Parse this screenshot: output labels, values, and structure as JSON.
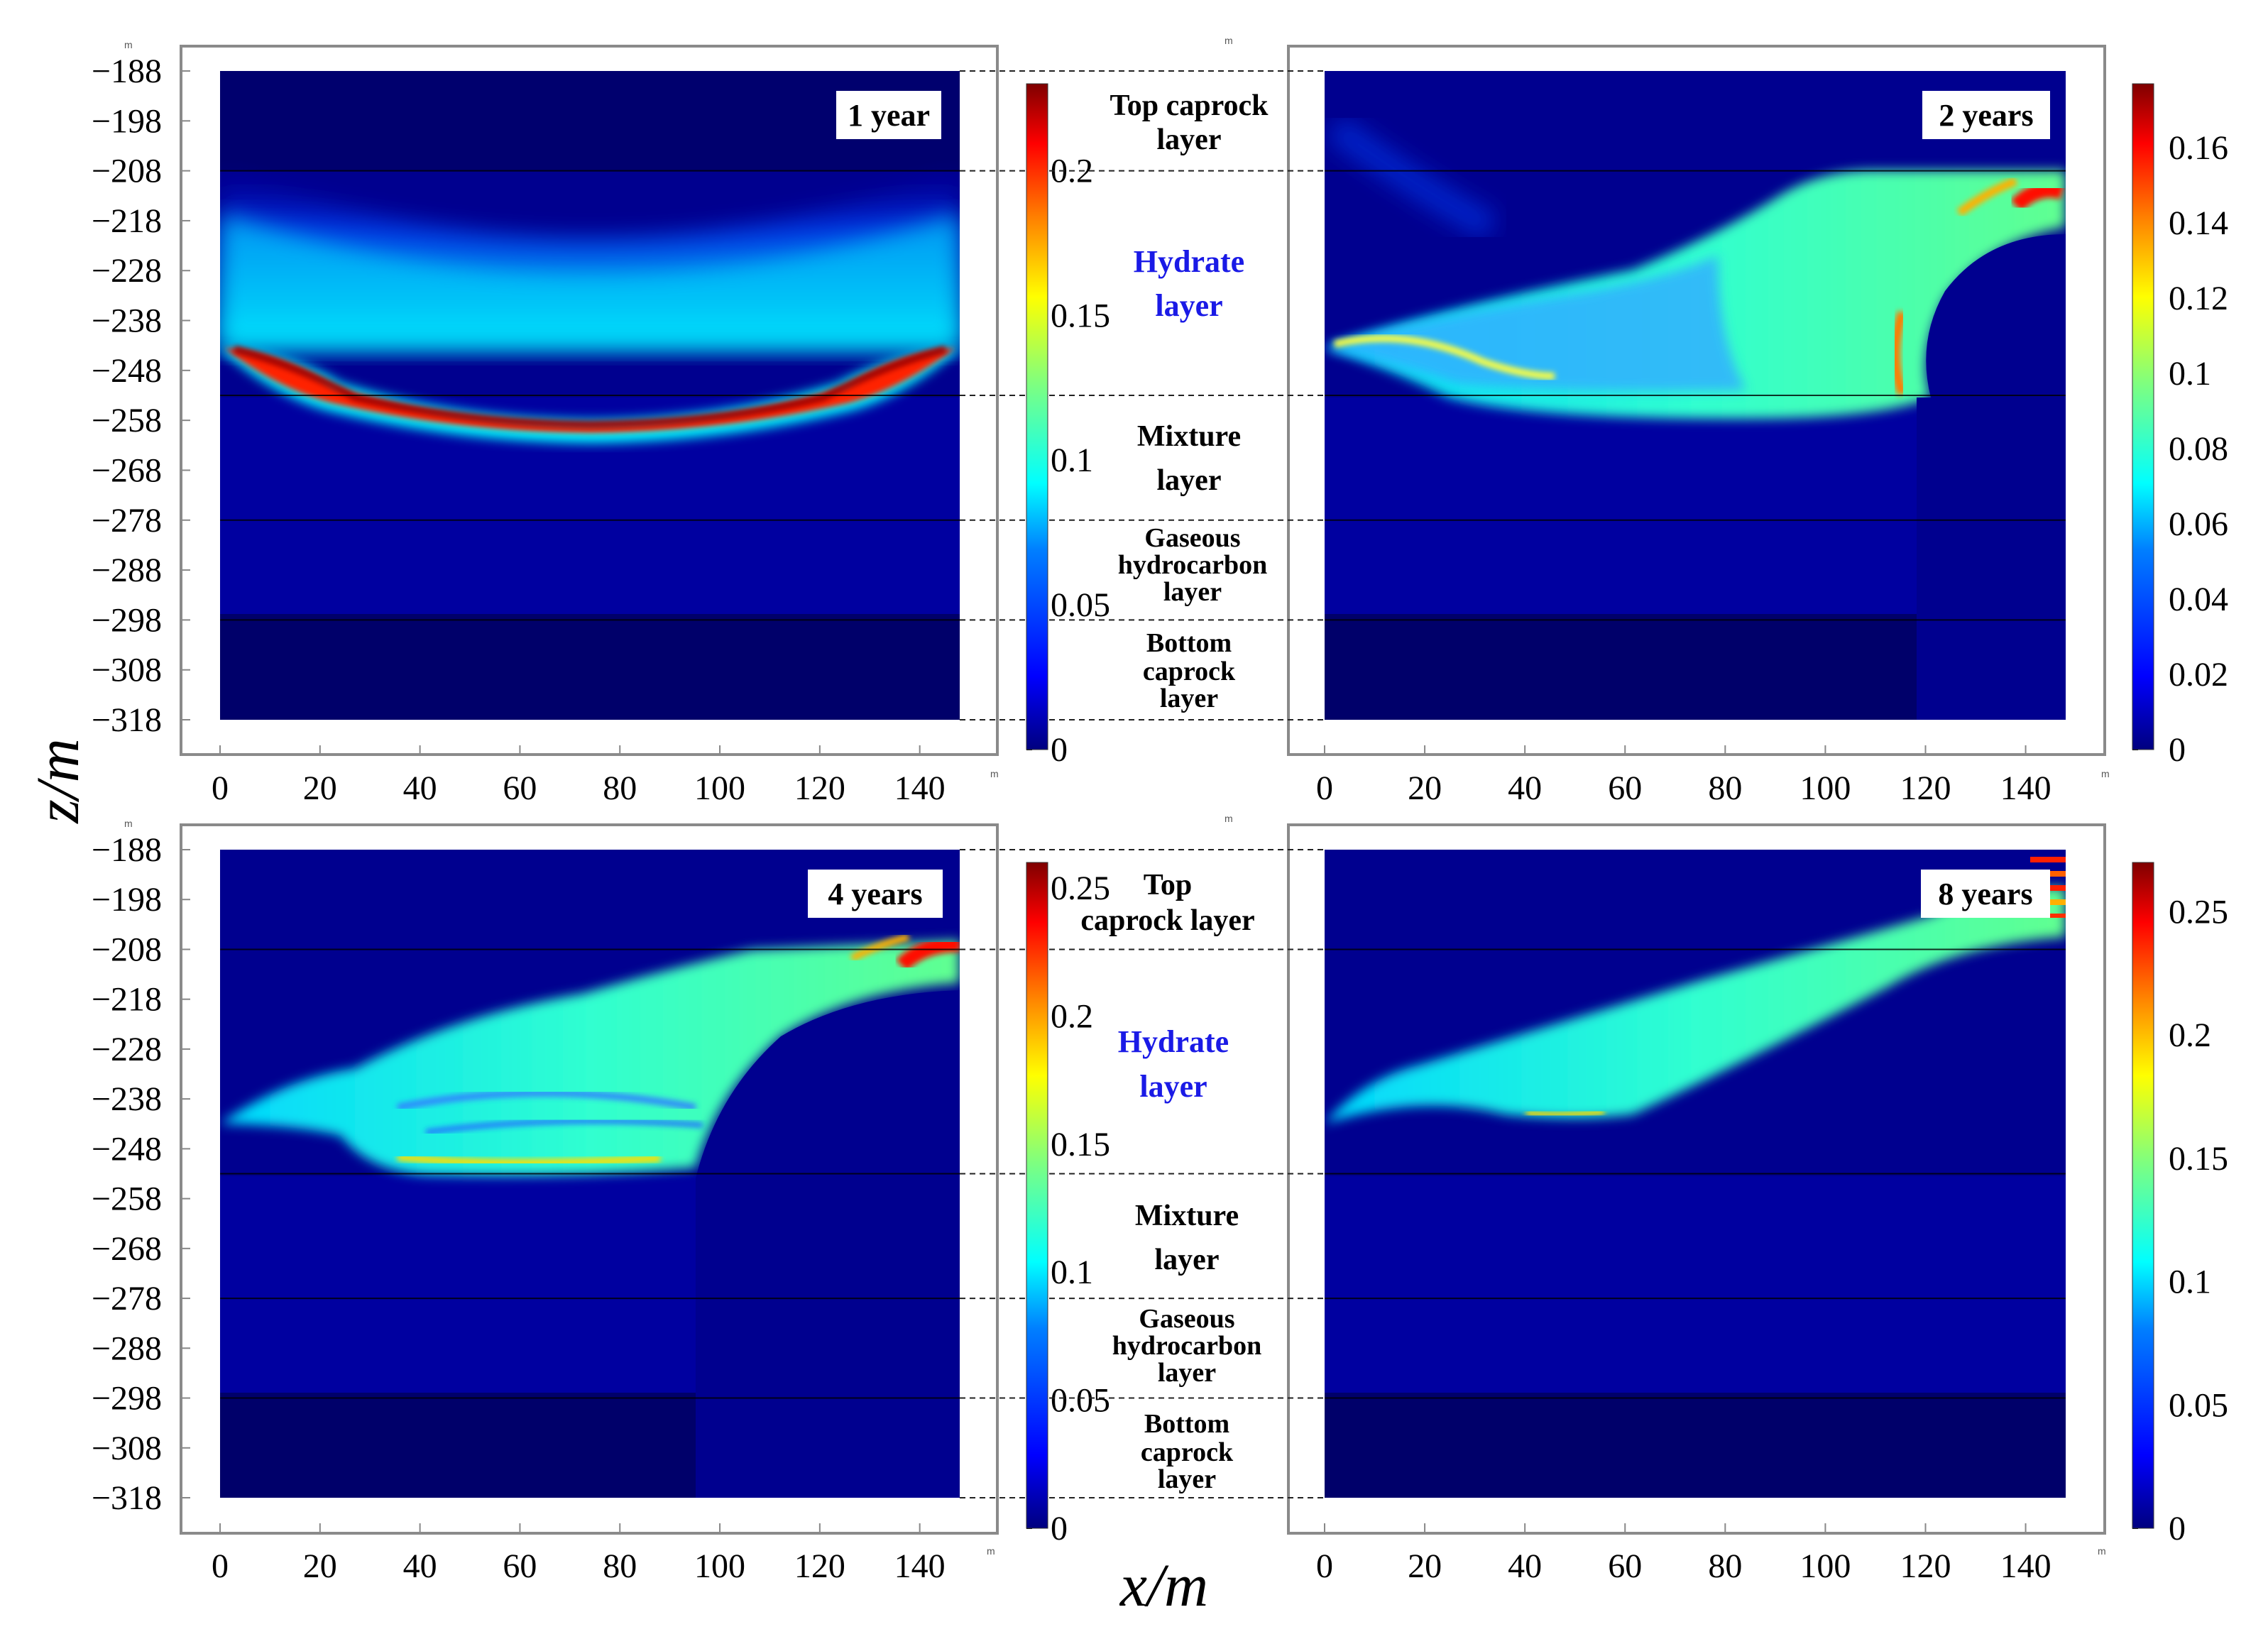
{
  "figure": {
    "xlabel": "x/m",
    "ylabel": "z/m",
    "axis_unit_marker": "m"
  },
  "layers": {
    "top_caprock": [
      "Top caprock",
      "layer"
    ],
    "top_caprock_alt": [
      "Top",
      "caprock layer"
    ],
    "hydrate": [
      "Hydrate",
      "layer"
    ],
    "mixture": [
      "Mixture",
      "layer"
    ],
    "gaseous": [
      "Gaseous",
      "hydrocarbon",
      "layer"
    ],
    "bottom_caprock": [
      "Bottom",
      "caprock",
      "layer"
    ]
  },
  "colors": {
    "background_field": "#00008f",
    "axis_frame": "#888888",
    "colormap": [
      "#00007f",
      "#0000ff",
      "#007fff",
      "#00ffff",
      "#7fff7f",
      "#ffff00",
      "#ff7f00",
      "#ff0000",
      "#7f0000"
    ]
  },
  "chart_data": [
    {
      "type": "heatmap",
      "title": "1 year",
      "x_ticks": [
        "0",
        "20",
        "40",
        "60",
        "80",
        "100",
        "120",
        "140"
      ],
      "xlim": [
        0,
        148
      ],
      "y_ticks": [
        "−188",
        "−198",
        "−208",
        "−218",
        "−228",
        "−238",
        "−248",
        "−258",
        "−268",
        "−278",
        "−288",
        "−298",
        "−308",
        "−318"
      ],
      "ylim": [
        -318,
        -188
      ],
      "layer_boundaries_z": [
        -208,
        -253,
        -278,
        -298
      ],
      "colorbar": {
        "min": 0,
        "max": 0.23,
        "ticks": [
          "0",
          "0.05",
          "0.1",
          "0.15",
          "0.2"
        ],
        "tick_values": [
          0,
          0.05,
          0.1,
          0.15,
          0.2
        ]
      }
    },
    {
      "type": "heatmap",
      "title": "2 years",
      "x_ticks": [
        "0",
        "20",
        "40",
        "60",
        "80",
        "100",
        "120",
        "140"
      ],
      "xlim": [
        0,
        148
      ],
      "y_ticks": [],
      "ylim": [
        -318,
        -188
      ],
      "layer_boundaries_z": [
        -208,
        -253,
        -278,
        -298
      ],
      "colorbar": {
        "min": 0,
        "max": 0.177,
        "ticks": [
          "0",
          "0.02",
          "0.04",
          "0.06",
          "0.08",
          "0.1",
          "0.12",
          "0.14",
          "0.16"
        ],
        "tick_values": [
          0,
          0.02,
          0.04,
          0.06,
          0.08,
          0.1,
          0.12,
          0.14,
          0.16
        ]
      }
    },
    {
      "type": "heatmap",
      "title": "4 years",
      "x_ticks": [
        "0",
        "20",
        "40",
        "60",
        "80",
        "100",
        "120",
        "140"
      ],
      "xlim": [
        0,
        148
      ],
      "y_ticks": [
        "−188",
        "−198",
        "−208",
        "−218",
        "−228",
        "−238",
        "−248",
        "−258",
        "−268",
        "−278",
        "−288",
        "−298",
        "−308",
        "−318"
      ],
      "ylim": [
        -318,
        -188
      ],
      "layer_boundaries_z": [
        -208,
        -253,
        -278,
        -298
      ],
      "colorbar": {
        "min": 0,
        "max": 0.26,
        "ticks": [
          "0",
          "0.05",
          "0.1",
          "0.15",
          "0.2",
          "0.25"
        ],
        "tick_values": [
          0,
          0.05,
          0.1,
          0.15,
          0.2,
          0.25
        ]
      }
    },
    {
      "type": "heatmap",
      "title": "8 years",
      "x_ticks": [
        "0",
        "20",
        "40",
        "60",
        "80",
        "100",
        "120",
        "140"
      ],
      "xlim": [
        0,
        148
      ],
      "y_ticks": [],
      "ylim": [
        -318,
        -188
      ],
      "layer_boundaries_z": [
        -208,
        -253,
        -278,
        -298
      ],
      "colorbar": {
        "min": 0,
        "max": 0.27,
        "ticks": [
          "0",
          "0.05",
          "0.1",
          "0.15",
          "0.2",
          "0.25"
        ],
        "tick_values": [
          0,
          0.05,
          0.1,
          0.15,
          0.2,
          0.25
        ]
      }
    }
  ]
}
